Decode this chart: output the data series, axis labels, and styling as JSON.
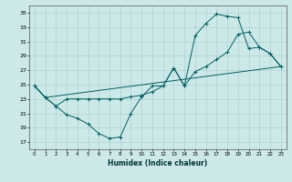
{
  "xlabel": "Humidex (Indice chaleur)",
  "background_color": "#cce8e8",
  "grid_color": "#aacccc",
  "line_color": "#006060",
  "xlim": [
    -0.5,
    23.5
  ],
  "ylim": [
    16,
    36
  ],
  "yticks": [
    17,
    19,
    21,
    23,
    25,
    27,
    29,
    31,
    33,
    35
  ],
  "xticks": [
    0,
    1,
    2,
    3,
    4,
    5,
    6,
    7,
    8,
    9,
    10,
    11,
    12,
    13,
    14,
    15,
    16,
    17,
    18,
    19,
    20,
    21,
    22,
    23
  ],
  "line1_x": [
    0,
    1,
    2,
    3,
    4,
    5,
    6,
    7,
    8,
    9,
    10,
    11,
    12,
    13,
    14,
    15,
    16,
    17,
    18,
    19,
    20,
    21,
    22,
    23
  ],
  "line1_y": [
    24.8,
    23.2,
    22.0,
    20.8,
    20.3,
    19.5,
    18.2,
    17.5,
    17.7,
    21.0,
    23.3,
    24.8,
    24.8,
    27.3,
    24.8,
    31.8,
    33.5,
    34.8,
    34.5,
    34.3,
    30.0,
    30.2,
    29.3,
    27.5
  ],
  "line2_x": [
    0,
    1,
    2,
    3,
    4,
    5,
    6,
    7,
    8,
    9,
    10,
    11,
    12,
    13,
    14,
    15,
    16,
    17,
    18,
    19,
    20,
    21,
    22,
    23
  ],
  "line2_y": [
    24.8,
    23.2,
    22.0,
    23.0,
    23.0,
    23.0,
    23.0,
    23.0,
    23.0,
    23.3,
    23.5,
    24.0,
    24.8,
    27.3,
    24.8,
    26.8,
    27.5,
    28.5,
    29.5,
    32.0,
    32.3,
    30.2,
    29.3,
    27.5
  ],
  "line3_x": [
    0,
    1,
    23
  ],
  "line3_y": [
    24.8,
    23.2,
    27.5
  ]
}
